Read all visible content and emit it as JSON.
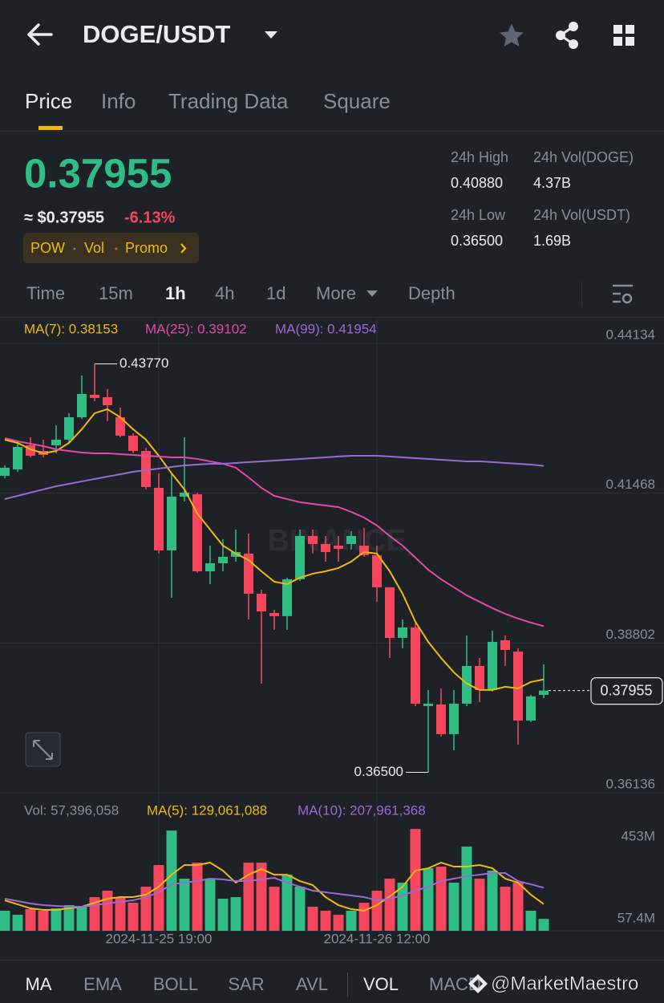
{
  "header": {
    "title": "DOGE/USDT"
  },
  "tabs": [
    "Price",
    "Info",
    "Trading Data",
    "Square"
  ],
  "ticker": {
    "price": "0.37955",
    "usd": "≈ $0.37955",
    "change": "-6.13%",
    "tags": [
      "POW",
      "Vol",
      "Promo"
    ]
  },
  "stats": [
    {
      "label": "24h High",
      "value": "0.40880"
    },
    {
      "label": "24h Vol(DOGE)",
      "value": "4.37B"
    },
    {
      "label": "24h Low",
      "value": "0.36500"
    },
    {
      "label": "24h Vol(USDT)",
      "value": "1.69B"
    }
  ],
  "intervals": [
    "Time",
    "15m",
    "1h",
    "4h",
    "1d",
    "More",
    "Depth"
  ],
  "indicators": [
    "MA",
    "EMA",
    "BOLL",
    "SAR",
    "AVL",
    "VOL",
    "MACD"
  ],
  "watermark": "@MarketMaestro",
  "chart_data": [
    {
      "type": "candlestick",
      "categories": [
        null,
        null,
        null,
        null,
        null,
        null,
        null,
        null,
        null,
        null,
        null,
        null,
        "2024-11-25 19:00",
        null,
        null,
        null,
        null,
        null,
        null,
        null,
        null,
        null,
        null,
        null,
        null,
        null,
        null,
        null,
        null,
        "2024-11-26 12:00",
        null,
        null,
        null,
        null,
        null,
        null,
        null,
        null,
        null,
        null,
        null,
        null,
        null
      ],
      "open": [
        0.41778,
        0.41892,
        0.4232,
        0.4222,
        0.4232,
        0.4242,
        0.4282,
        0.4322,
        0.43177,
        0.4282,
        0.42492,
        0.4222,
        0.41564,
        0.4045,
        0.41407,
        0.41449,
        0.40078,
        0.40221,
        0.40336,
        0.40393,
        0.39679,
        0.39336,
        0.39279,
        0.39936,
        0.40707,
        0.40564,
        0.40535,
        0.40564,
        0.40535,
        0.40364,
        0.39793,
        0.38893,
        0.39079,
        0.37679,
        0.37708,
        0.3718,
        0.37722,
        0.38393,
        0.37965,
        0.3885,
        0.3865,
        0.37422,
        0.37879
      ],
      "high": [
        0.41963,
        0.42392,
        0.42463,
        0.4242,
        0.42677,
        0.42892,
        0.43563,
        0.4377,
        0.4332,
        0.42992,
        0.42535,
        0.42278,
        0.41821,
        0.41821,
        0.42463,
        0.41478,
        0.40535,
        0.4065,
        0.40821,
        0.4075,
        0.3975,
        0.39393,
        0.39964,
        0.40821,
        0.40821,
        0.40707,
        0.40707,
        0.40792,
        0.4085,
        0.40535,
        0.39793,
        0.39222,
        0.39179,
        0.37965,
        0.37994,
        0.37965,
        0.38936,
        0.38536,
        0.39022,
        0.38936,
        0.38708,
        0.37879,
        0.38422
      ],
      "low": [
        0.41735,
        0.41849,
        0.42106,
        0.42106,
        0.42178,
        0.42363,
        0.42792,
        0.43106,
        0.42749,
        0.42463,
        0.42178,
        0.41535,
        0.40393,
        0.39607,
        0.41321,
        0.4005,
        0.3985,
        0.40078,
        0.4025,
        0.39222,
        0.38079,
        0.39036,
        0.39036,
        0.39907,
        0.40393,
        0.4025,
        0.4025,
        0.40464,
        0.40336,
        0.39536,
        0.38536,
        0.38708,
        0.37679,
        0.365,
        0.37137,
        0.36894,
        0.37679,
        0.37751,
        0.37936,
        0.38393,
        0.36994,
        0.37394,
        0.37822
      ],
      "close": [
        0.41921,
        0.42292,
        0.42135,
        0.42149,
        0.4242,
        0.4282,
        0.43234,
        0.43163,
        0.43034,
        0.42492,
        0.4222,
        0.41578,
        0.4045,
        0.41407,
        0.41478,
        0.40078,
        0.40221,
        0.40336,
        0.40421,
        0.39679,
        0.39364,
        0.39279,
        0.39936,
        0.40707,
        0.40564,
        0.40421,
        0.40478,
        0.40707,
        0.40364,
        0.39793,
        0.38893,
        0.39079,
        0.37722,
        0.37722,
        0.3718,
        0.37722,
        0.38393,
        0.37965,
        0.38822,
        0.38679,
        0.37422,
        0.37851,
        0.37955
      ],
      "up_color": "#2ebd85",
      "down_color": "#f6465d",
      "series": [
        {
          "name": "MA(7): 0.38153",
          "color": "#f0b90b",
          "values": [
            0.4242,
            0.42363,
            0.42249,
            0.42178,
            0.4222,
            0.42363,
            0.42606,
            0.42892,
            0.42963,
            0.4282,
            0.42606,
            0.4242,
            0.42135,
            0.41821,
            0.41535,
            0.41107,
            0.40821,
            0.40535,
            0.40393,
            0.40278,
            0.40078,
            0.39893,
            0.3985,
            0.39964,
            0.40036,
            0.40078,
            0.40136,
            0.4025,
            0.40421,
            0.40393,
            0.40078,
            0.39679,
            0.39179,
            0.38822,
            0.38536,
            0.38279,
            0.38079,
            0.37965,
            0.37965,
            0.38022,
            0.37994,
            0.38108,
            0.38153
          ]
        },
        {
          "name": "MA(25): 0.39102",
          "color": "#e04aa8",
          "values": [
            0.42449,
            0.42392,
            0.42349,
            0.42306,
            0.42249,
            0.4222,
            0.42192,
            0.42178,
            0.42178,
            0.42163,
            0.42149,
            0.42135,
            0.42121,
            0.42106,
            0.42106,
            0.42078,
            0.42035,
            0.41992,
            0.41921,
            0.41749,
            0.41564,
            0.41421,
            0.41364,
            0.41307,
            0.41278,
            0.41249,
            0.41221,
            0.41135,
            0.41035,
            0.40892,
            0.40707,
            0.40535,
            0.40321,
            0.40107,
            0.39936,
            0.39793,
            0.3965,
            0.39536,
            0.39422,
            0.39322,
            0.39236,
            0.39165,
            0.39102
          ]
        },
        {
          "name": "MA(99): 0.41954",
          "color": "#9a6ad6",
          "values": [
            0.41364,
            0.41421,
            0.41478,
            0.41535,
            0.41592,
            0.41635,
            0.41678,
            0.41721,
            0.41764,
            0.41806,
            0.41849,
            0.41878,
            0.41906,
            0.41935,
            0.41963,
            0.41978,
            0.41992,
            0.41992,
            0.42006,
            0.42021,
            0.42035,
            0.42049,
            0.42063,
            0.42078,
            0.42092,
            0.42106,
            0.42121,
            0.42135,
            0.42135,
            0.42135,
            0.42121,
            0.42106,
            0.42092,
            0.42078,
            0.42063,
            0.42049,
            0.42035,
            0.42035,
            0.42021,
            0.42006,
            0.41992,
            0.41978,
            0.41954
          ]
        }
      ],
      "ylim": [
        0.36136,
        0.44605
      ],
      "yticks": [
        0.44134,
        0.41468,
        0.38802,
        0.36136
      ],
      "grid": true,
      "watermark": "BINANCE",
      "high_marker": {
        "value": 0.4377,
        "label": "0.43770"
      },
      "low_marker": {
        "value": 0.365,
        "label": "0.36500"
      },
      "last_price": 0.37955
    },
    {
      "type": "bar",
      "legend": "Vol: 57,396,058",
      "values": [
        96800000,
        77400000,
        104500000,
        96800000,
        108400000,
        123900000,
        116200000,
        162600000,
        193600000,
        162600000,
        135500000,
        213000000,
        317500000,
        484000000,
        251700000,
        329100000,
        251700000,
        154900000,
        162600000,
        329100000,
        329100000,
        213000000,
        271000000,
        213000000,
        116200000,
        96800000,
        77400000,
        96800000,
        135500000,
        193600000,
        251700000,
        232300000,
        491700000,
        302000000,
        309800000,
        232300000,
        406600000,
        251700000,
        290400000,
        213000000,
        232300000,
        96800000,
        57396058
      ],
      "series": [
        {
          "name": "MA(5): 129,061,088",
          "color": "#f0b90b",
          "values": [
            147100000,
            127800000,
            108400000,
            100700000,
            100700000,
            108400000,
            116200000,
            135500000,
            154900000,
            162600000,
            162600000,
            174200000,
            213000000,
            271000000,
            317500000,
            317500000,
            329100000,
            290400000,
            232300000,
            271000000,
            298100000,
            271000000,
            271000000,
            240100000,
            220700000,
            162600000,
            123900000,
            104500000,
            96800000,
            123900000,
            166500000,
            213000000,
            290400000,
            302000000,
            329100000,
            309800000,
            309800000,
            317500000,
            302000000,
            251700000,
            232300000,
            174200000,
            129061088
          ]
        },
        {
          "name": "MA(10): 207,961,368",
          "color": "#9a6ad6",
          "values": [
            154900000,
            143300000,
            131600000,
            123900000,
            120000000,
            116200000,
            116200000,
            123900000,
            131600000,
            139400000,
            147100000,
            162600000,
            185900000,
            224600000,
            232300000,
            240100000,
            251700000,
            247800000,
            240100000,
            240100000,
            247800000,
            255600000,
            232300000,
            213000000,
            193600000,
            185900000,
            178100000,
            170400000,
            162600000,
            147100000,
            154900000,
            170400000,
            193600000,
            213000000,
            240100000,
            251700000,
            263300000,
            271000000,
            278800000,
            278800000,
            240100000,
            224600000,
            207961368
          ]
        }
      ],
      "ylim": [
        0,
        620000000
      ],
      "yticks": [
        {
          "value": 453000000,
          "label": "453M"
        },
        {
          "value": 57400000,
          "label": "57.4M"
        }
      ]
    }
  ]
}
